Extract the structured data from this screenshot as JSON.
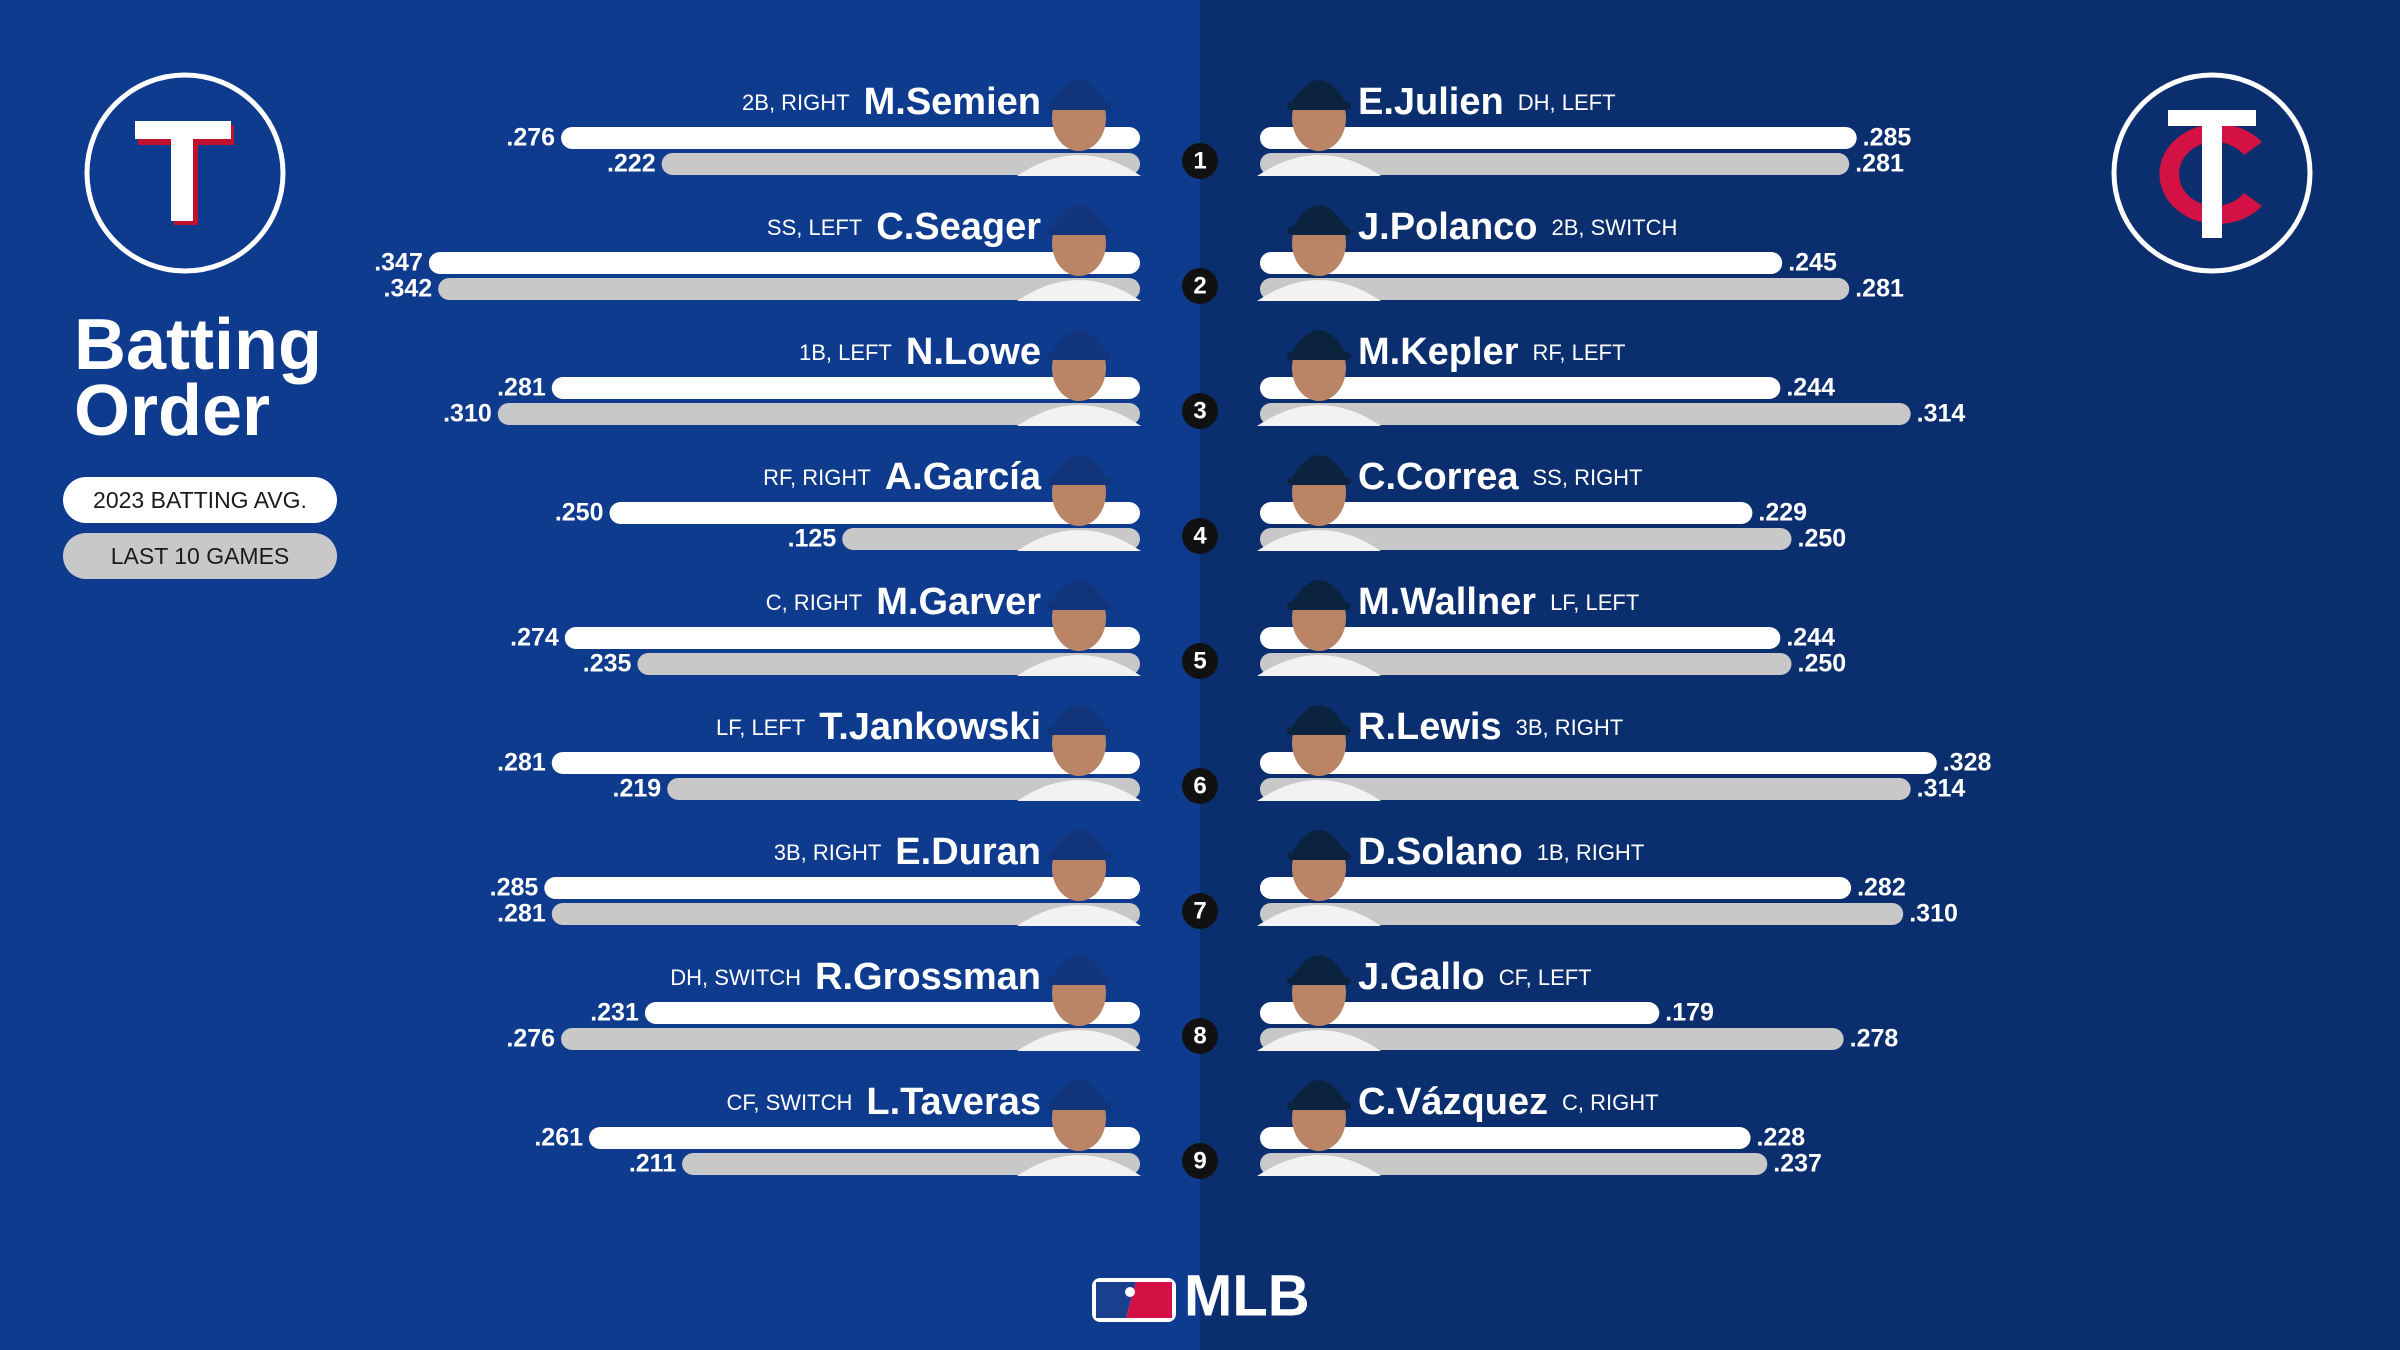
{
  "title": "Batting Order",
  "legend": [
    {
      "label": "2023 BATTING AVG.",
      "color": "#ffffff"
    },
    {
      "label": "LAST 10 GAMES",
      "color": "#c8c8c8"
    }
  ],
  "batting_slots": [
    1,
    2,
    3,
    4,
    5,
    6,
    7,
    8,
    9
  ],
  "teams": [
    {
      "players": [
        {
          "name": "M.Semien",
          "position": "2B, RIGHT",
          "avg": [
            0.276,
            0.222
          ],
          "avg_labels": [
            ".276",
            ".222"
          ]
        },
        {
          "name": "C.Seager",
          "position": "SS, LEFT",
          "avg": [
            0.347,
            0.342
          ],
          "avg_labels": [
            ".347",
            ".342"
          ]
        },
        {
          "name": "N.Lowe",
          "position": "1B, LEFT",
          "avg": [
            0.281,
            0.31
          ],
          "avg_labels": [
            ".281",
            ".310"
          ]
        },
        {
          "name": "A.García",
          "position": "RF, RIGHT",
          "avg": [
            0.25,
            0.125
          ],
          "avg_labels": [
            ".250",
            ".125"
          ]
        },
        {
          "name": "M.Garver",
          "position": "C, RIGHT",
          "avg": [
            0.274,
            0.235
          ],
          "avg_labels": [
            ".274",
            ".235"
          ]
        },
        {
          "name": "T.Jankowski",
          "position": "LF, LEFT",
          "avg": [
            0.281,
            0.219
          ],
          "avg_labels": [
            ".281",
            ".219"
          ]
        },
        {
          "name": "E.Duran",
          "position": "3B, RIGHT",
          "avg": [
            0.285,
            0.281
          ],
          "avg_labels": [
            ".285",
            ".281"
          ]
        },
        {
          "name": "R.Grossman",
          "position": "DH, SWITCH",
          "avg": [
            0.231,
            0.276
          ],
          "avg_labels": [
            ".231",
            ".276"
          ]
        },
        {
          "name": "L.Taveras",
          "position": "CF, SWITCH",
          "avg": [
            0.261,
            0.211
          ],
          "avg_labels": [
            ".261",
            ".211"
          ]
        }
      ]
    },
    {
      "players": [
        {
          "name": "E.Julien",
          "position": "DH, LEFT",
          "avg": [
            0.285,
            0.281
          ],
          "avg_labels": [
            ".285",
            ".281"
          ]
        },
        {
          "name": "J.Polanco",
          "position": "2B, SWITCH",
          "avg": [
            0.245,
            0.281
          ],
          "avg_labels": [
            ".245",
            ".281"
          ]
        },
        {
          "name": "M.Kepler",
          "position": "RF, LEFT",
          "avg": [
            0.244,
            0.314
          ],
          "avg_labels": [
            ".244",
            ".314"
          ]
        },
        {
          "name": "C.Correa",
          "position": "SS, RIGHT",
          "avg": [
            0.229,
            0.25
          ],
          "avg_labels": [
            ".229",
            ".250"
          ]
        },
        {
          "name": "M.Wallner",
          "position": "LF, LEFT",
          "avg": [
            0.244,
            0.25
          ],
          "avg_labels": [
            ".244",
            ".250"
          ]
        },
        {
          "name": "R.Lewis",
          "position": "3B, RIGHT",
          "avg": [
            0.328,
            0.314
          ],
          "avg_labels": [
            ".328",
            ".314"
          ]
        },
        {
          "name": "D.Solano",
          "position": "1B, RIGHT",
          "avg": [
            0.282,
            0.31
          ],
          "avg_labels": [
            ".282",
            ".310"
          ]
        },
        {
          "name": "J.Gallo",
          "position": "CF, LEFT",
          "avg": [
            0.179,
            0.278
          ],
          "avg_labels": [
            ".179",
            ".278"
          ]
        },
        {
          "name": "C.Vázquez",
          "position": "C, RIGHT",
          "avg": [
            0.228,
            0.237
          ],
          "avg_labels": [
            ".228",
            ".237"
          ]
        }
      ]
    }
  ],
  "footer": "MLB"
}
